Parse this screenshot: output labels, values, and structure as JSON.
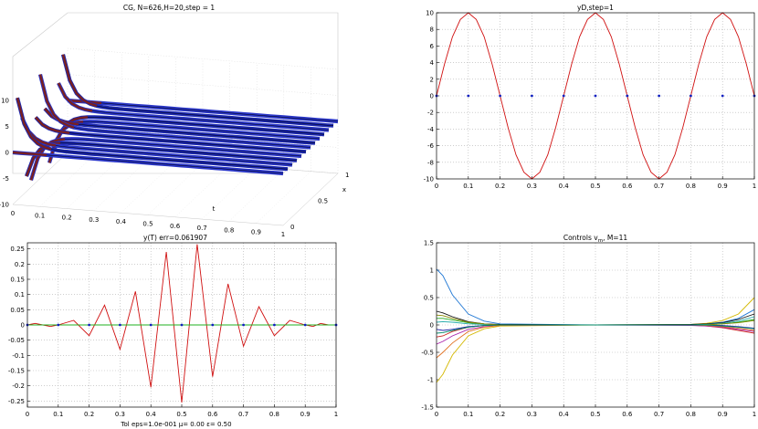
{
  "figure": {
    "footer_text": "Tol eps=1.0e-001 μ=    0.00 ε=   0.50"
  },
  "chart_data": [
    {
      "type": "surface",
      "title": "CG, N=626,H=20,step = 1",
      "xlabel": "t",
      "ylabel": "x",
      "zlim": [
        -10,
        10
      ],
      "z_ticks": [
        "10",
        "5",
        "0",
        "-5",
        "-10"
      ],
      "t_ticks": [
        "0",
        "0.1",
        "0.2",
        "0.3",
        "0.4",
        "0.5",
        "0.6",
        "0.7",
        "0.8",
        "0.9",
        "1"
      ],
      "x_ticks": [
        "0",
        "0.5",
        "1"
      ],
      "colors": {
        "surface": "#2030d0",
        "peaks": "#7a2020",
        "edge": "#000000"
      }
    },
    {
      "type": "line",
      "title": "yD,step=1",
      "xlim": [
        0,
        1
      ],
      "ylim": [
        -10,
        10
      ],
      "x_ticks": [
        "0",
        "0.1",
        "0.2",
        "0.3",
        "0.4",
        "0.5",
        "0.6",
        "0.7",
        "0.8",
        "0.9",
        "1"
      ],
      "y_ticks": [
        "10",
        "8",
        "6",
        "4",
        "2",
        "0",
        "-2",
        "-4",
        "-6",
        "-8",
        "-10"
      ],
      "grid": true,
      "series": [
        {
          "color": "#d01010",
          "x": [
            0,
            0.025,
            0.05,
            0.075,
            0.1,
            0.125,
            0.15,
            0.175,
            0.2,
            0.225,
            0.25,
            0.275,
            0.3,
            0.325,
            0.35,
            0.375,
            0.4,
            0.425,
            0.45,
            0.475,
            0.5,
            0.525,
            0.55,
            0.575,
            0.6,
            0.625,
            0.65,
            0.675,
            0.7,
            0.725,
            0.75,
            0.775,
            0.8,
            0.825,
            0.85,
            0.875,
            0.9,
            0.925,
            0.95,
            0.975,
            1
          ],
          "y": [
            0,
            3.8,
            7.1,
            9.2,
            10,
            9.2,
            7.1,
            3.8,
            0,
            -3.8,
            -7.1,
            -9.2,
            -10,
            -9.2,
            -7.1,
            -3.8,
            0,
            3.8,
            7.1,
            9.2,
            10,
            9.2,
            7.1,
            3.8,
            0,
            -3.8,
            -7.1,
            -9.2,
            -10,
            -9.2,
            -7.1,
            -3.8,
            0,
            3.8,
            7.1,
            9.2,
            10,
            9.2,
            7.1,
            3.8,
            0
          ]
        },
        {
          "color": "#1020c0",
          "markers": true,
          "x": [
            0,
            0.1,
            0.2,
            0.3,
            0.4,
            0.5,
            0.6,
            0.7,
            0.8,
            0.9,
            1
          ],
          "y": [
            0,
            0,
            0,
            0,
            0,
            0,
            0,
            0,
            0,
            0,
            0
          ]
        }
      ]
    },
    {
      "type": "line",
      "title": "y(T) err=0.061907",
      "xlim": [
        0,
        1
      ],
      "ylim": [
        -0.27,
        0.27
      ],
      "x_ticks": [
        "0",
        "0.1",
        "0.2",
        "0.3",
        "0.4",
        "0.5",
        "0.6",
        "0.7",
        "0.8",
        "0.9",
        "1"
      ],
      "y_ticks": [
        "0.25",
        "0.2",
        "0.15",
        "0.1",
        "0.05",
        "0",
        "-0.05",
        "-0.1",
        "-0.15",
        "-0.2",
        "-0.25"
      ],
      "grid": true,
      "series": [
        {
          "color": "#d01010",
          "x": [
            0,
            0.025,
            0.05,
            0.075,
            0.1,
            0.15,
            0.2,
            0.25,
            0.3,
            0.35,
            0.4,
            0.45,
            0.5,
            0.55,
            0.6,
            0.65,
            0.7,
            0.75,
            0.8,
            0.85,
            0.9,
            0.925,
            0.95,
            0.975,
            1
          ],
          "y": [
            0,
            0.005,
            0,
            -0.005,
            0,
            0.015,
            -0.035,
            0.065,
            -0.08,
            0.11,
            -0.205,
            0.24,
            -0.255,
            0.265,
            -0.17,
            0.135,
            -0.07,
            0.06,
            -0.035,
            0.015,
            0,
            -0.005,
            0.005,
            0,
            0
          ]
        },
        {
          "color": "#20b020",
          "x": [
            0,
            0.1,
            0.2,
            0.3,
            0.4,
            0.5,
            0.6,
            0.7,
            0.8,
            0.9,
            1
          ],
          "y": [
            0,
            0,
            0,
            0,
            0,
            0,
            0,
            0,
            0,
            0,
            0
          ]
        },
        {
          "color": "#1020c0",
          "markers": true,
          "x": [
            0,
            0.1,
            0.2,
            0.3,
            0.4,
            0.5,
            0.6,
            0.7,
            0.8,
            0.9,
            1
          ],
          "y": [
            0,
            0,
            0,
            0,
            0,
            0,
            0,
            0,
            0,
            0,
            0
          ]
        }
      ]
    },
    {
      "type": "line",
      "title": "Controls v",
      "title_subscript": "m",
      "title_suffix": ", M=11",
      "xlim": [
        0,
        1
      ],
      "ylim": [
        -1.5,
        1.5
      ],
      "x_ticks": [
        "0",
        "0.1",
        "0.2",
        "0.3",
        "0.4",
        "0.5",
        "0.6",
        "0.7",
        "0.8",
        "0.9",
        "1"
      ],
      "y_ticks": [
        "1.5",
        "1",
        "0.5",
        "0",
        "-0.5",
        "-1",
        "-1.5"
      ],
      "grid": true,
      "series": [
        {
          "color": "#1f77d4",
          "x": [
            0,
            0.02,
            0.05,
            0.1,
            0.15,
            0.2,
            0.5,
            0.8,
            0.85,
            0.9,
            0.95,
            1
          ],
          "y": [
            1.02,
            0.9,
            0.55,
            0.2,
            0.07,
            0.02,
            0,
            0.01,
            0.02,
            0.05,
            0.12,
            0.28
          ]
        },
        {
          "color": "#d4b800",
          "x": [
            0,
            0.02,
            0.05,
            0.1,
            0.15,
            0.2,
            0.5,
            0.8,
            0.85,
            0.9,
            0.95,
            1
          ],
          "y": [
            -1.05,
            -0.9,
            -0.55,
            -0.2,
            -0.07,
            -0.02,
            0,
            0.01,
            0.03,
            0.08,
            0.2,
            0.5
          ]
        },
        {
          "color": "#111111",
          "x": [
            0,
            0.02,
            0.05,
            0.1,
            0.15,
            0.2,
            0.5,
            0.8,
            0.85,
            0.9,
            0.95,
            1
          ],
          "y": [
            0.25,
            0.22,
            0.15,
            0.06,
            0.02,
            0.01,
            0,
            0.01,
            0.02,
            0.04,
            0.1,
            0.2
          ]
        },
        {
          "color": "#cc2222",
          "x": [
            0,
            0.02,
            0.05,
            0.1,
            0.15,
            0.2,
            0.5,
            0.8,
            0.85,
            0.9,
            0.95,
            1
          ],
          "y": [
            -0.22,
            -0.2,
            -0.12,
            -0.04,
            -0.01,
            0,
            0,
            0,
            -0.02,
            -0.05,
            -0.1,
            -0.15
          ]
        },
        {
          "color": "#22aa22",
          "x": [
            0,
            0.02,
            0.05,
            0.1,
            0.15,
            0.2,
            0.5,
            0.8,
            0.85,
            0.9,
            0.95,
            1
          ],
          "y": [
            0.12,
            0.12,
            0.09,
            0.04,
            0.01,
            0,
            0,
            0,
            0.01,
            0.02,
            0.05,
            0.1
          ]
        },
        {
          "color": "#aa22aa",
          "x": [
            0,
            0.02,
            0.05,
            0.1,
            0.15,
            0.2,
            0.5,
            0.8,
            0.85,
            0.9,
            0.95,
            1
          ],
          "y": [
            -0.35,
            -0.3,
            -0.2,
            -0.08,
            -0.03,
            -0.01,
            0,
            -0.01,
            -0.02,
            -0.04,
            -0.08,
            -0.12
          ]
        },
        {
          "color": "#22aaaa",
          "x": [
            0,
            0.02,
            0.05,
            0.1,
            0.15,
            0.2,
            0.5,
            0.8,
            0.85,
            0.9,
            0.95,
            1
          ],
          "y": [
            0.05,
            0.06,
            0.05,
            0.02,
            0.01,
            0,
            0,
            0,
            0.01,
            0.03,
            0.07,
            0.15
          ]
        },
        {
          "color": "#2222aa",
          "x": [
            0,
            0.02,
            0.05,
            0.1,
            0.15,
            0.2,
            0.5,
            0.8,
            0.85,
            0.9,
            0.95,
            1
          ],
          "y": [
            -0.08,
            -0.1,
            -0.08,
            -0.03,
            -0.01,
            0,
            0,
            0,
            0,
            -0.01,
            -0.03,
            -0.06
          ]
        },
        {
          "color": "#e07020",
          "x": [
            0,
            0.02,
            0.05,
            0.1,
            0.15,
            0.2,
            0.5,
            0.8,
            0.85,
            0.9,
            0.95,
            1
          ],
          "y": [
            -0.6,
            -0.5,
            -0.33,
            -0.12,
            -0.04,
            -0.01,
            0,
            0,
            -0.01,
            -0.03,
            -0.06,
            -0.1
          ]
        },
        {
          "color": "#888800",
          "x": [
            0,
            0.02,
            0.05,
            0.1,
            0.15,
            0.2,
            0.5,
            0.8,
            0.85,
            0.9,
            0.95,
            1
          ],
          "y": [
            0.18,
            0.17,
            0.12,
            0.05,
            0.02,
            0,
            0,
            0,
            0,
            0.02,
            0.04,
            0.08
          ]
        },
        {
          "color": "#008866",
          "x": [
            0,
            0.02,
            0.05,
            0.1,
            0.15,
            0.2,
            0.5,
            0.8,
            0.85,
            0.9,
            0.95,
            1
          ],
          "y": [
            -0.15,
            -0.14,
            -0.1,
            -0.04,
            -0.01,
            0,
            0,
            0,
            0,
            -0.02,
            -0.04,
            -0.07
          ]
        }
      ]
    }
  ]
}
